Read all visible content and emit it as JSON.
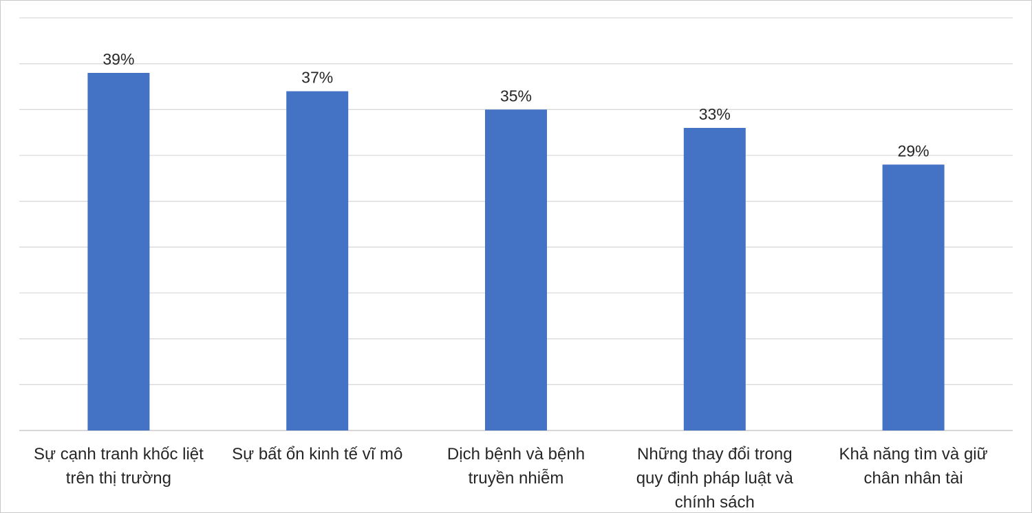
{
  "chart_data": {
    "type": "bar",
    "categories": [
      [
        "Sự cạnh tranh khốc liệt",
        "trên thị trường"
      ],
      [
        "Sự bất ổn kinh tế vĩ mô"
      ],
      [
        "Dịch bệnh và bệnh",
        "truyền nhiễm"
      ],
      [
        "Những thay đổi trong",
        "quy định pháp luật và",
        "chính sách"
      ],
      [
        "Khả năng tìm và giữ",
        "chân nhân tài"
      ]
    ],
    "values": [
      39,
      37,
      35,
      33,
      29
    ],
    "data_labels": [
      "39%",
      "37%",
      "35%",
      "33%",
      "29%"
    ],
    "ylim": [
      0,
      45
    ],
    "grid_step": 5,
    "grid": true,
    "legend": "none",
    "bar_color": "#4472c4"
  }
}
